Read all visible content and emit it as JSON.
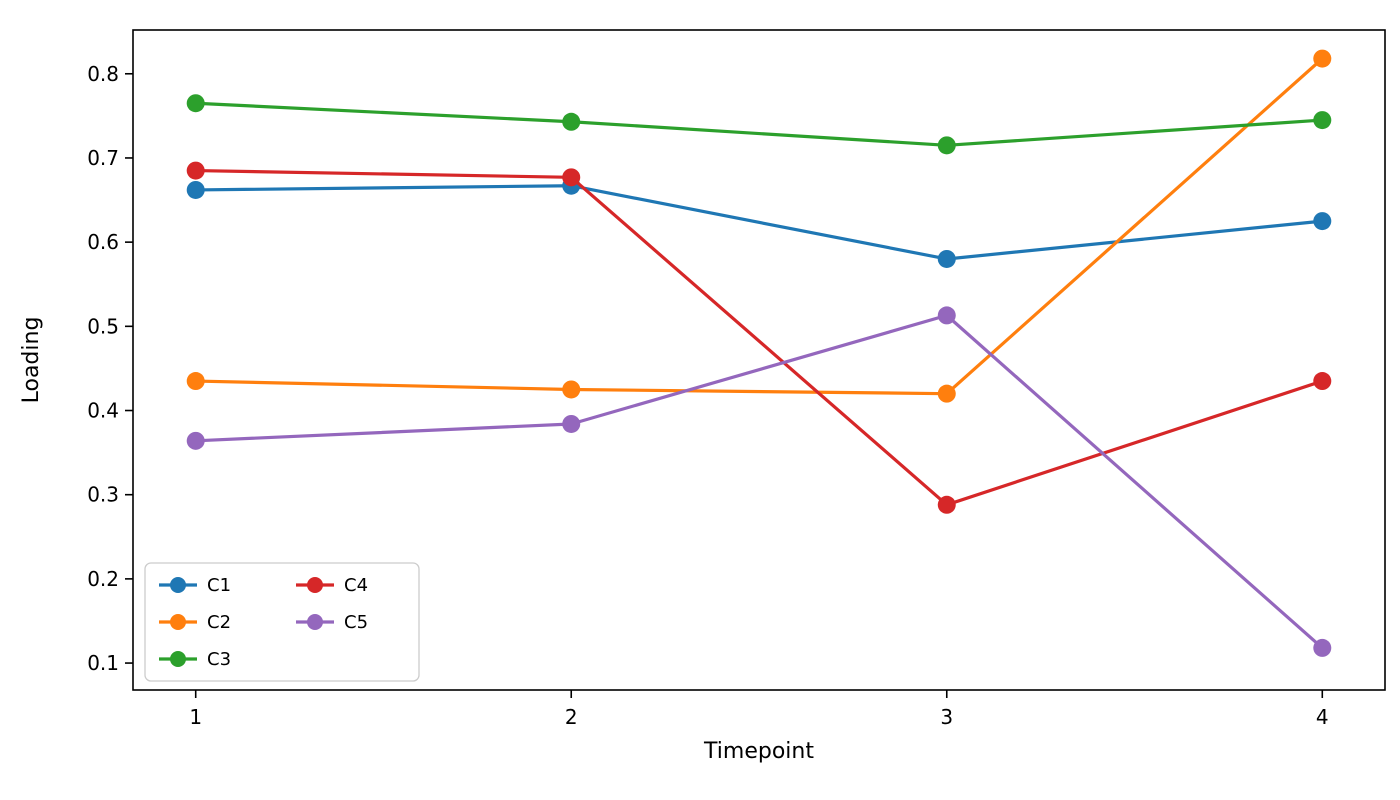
{
  "chart_data": {
    "type": "line",
    "title": "",
    "xlabel": "Timepoint",
    "ylabel": "Loading",
    "x": [
      1,
      2,
      3,
      4
    ],
    "xticks": [
      1,
      2,
      3,
      4
    ],
    "yticks": [
      0.1,
      0.2,
      0.3,
      0.4,
      0.5,
      0.6,
      0.7,
      0.8
    ],
    "xlim": [
      0.833,
      4.167
    ],
    "ylim": [
      0.068,
      0.852
    ],
    "grid": false,
    "legend_position": "lower-left",
    "legend_columns": 2,
    "series": [
      {
        "name": "C1",
        "color": "#1f77b4",
        "values": [
          0.662,
          0.667,
          0.58,
          0.625
        ]
      },
      {
        "name": "C2",
        "color": "#ff7f0e",
        "values": [
          0.435,
          0.425,
          0.42,
          0.818
        ]
      },
      {
        "name": "C3",
        "color": "#2ca02c",
        "values": [
          0.765,
          0.743,
          0.715,
          0.745
        ]
      },
      {
        "name": "C4",
        "color": "#d62728",
        "values": [
          0.685,
          0.677,
          0.288,
          0.435
        ]
      },
      {
        "name": "C5",
        "color": "#9467bd",
        "values": [
          0.364,
          0.384,
          0.513,
          0.118
        ]
      }
    ]
  }
}
